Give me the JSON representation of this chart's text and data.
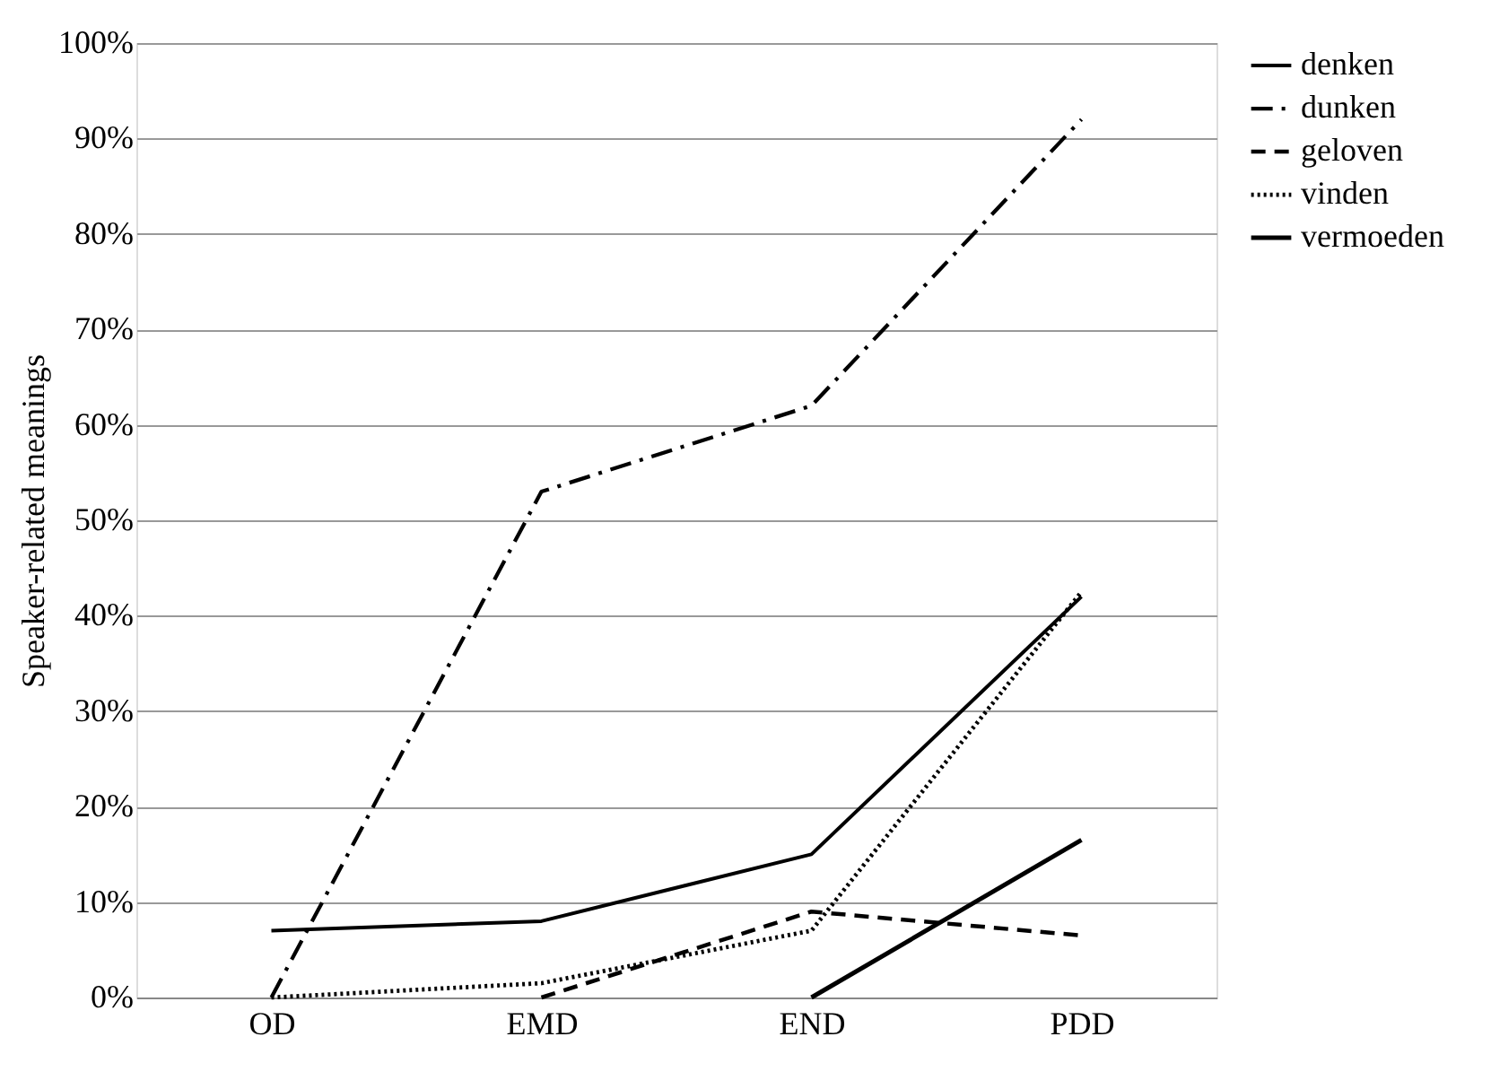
{
  "chart_data": {
    "type": "line",
    "ylabel": "Speaker-related meanings",
    "categories": [
      "OD",
      "EMD",
      "END",
      "PDD"
    ],
    "series": [
      {
        "name": "denken",
        "color": "#000000",
        "line_style": "solid",
        "values": [
          7,
          8,
          15,
          42
        ]
      },
      {
        "name": "dunken",
        "color": "#000000",
        "line_style": "dashdot",
        "values": [
          0,
          53,
          62,
          92
        ]
      },
      {
        "name": "geloven",
        "color": "#000000",
        "line_style": "dashed",
        "values": [
          null,
          0,
          9,
          6.5
        ]
      },
      {
        "name": "vinden",
        "color": "#000000",
        "line_style": "dotted",
        "values": [
          0,
          1.5,
          7,
          42.5
        ]
      },
      {
        "name": "vermoeden",
        "color": "#000000",
        "line_style": "solid",
        "values": [
          null,
          null,
          0,
          16.5
        ]
      }
    ],
    "ylim": [
      0,
      100
    ],
    "yticks": [
      {
        "value": 0,
        "label": "0%"
      },
      {
        "value": 10,
        "label": "10%"
      },
      {
        "value": 20,
        "label": "20%"
      },
      {
        "value": 30,
        "label": "30%"
      },
      {
        "value": 40,
        "label": "40%"
      },
      {
        "value": 50,
        "label": "50%"
      },
      {
        "value": 60,
        "label": "60%"
      },
      {
        "value": 70,
        "label": "70%"
      },
      {
        "value": 80,
        "label": "80%"
      },
      {
        "value": 90,
        "label": "90%"
      },
      {
        "value": 100,
        "label": "100%"
      }
    ],
    "grid": "y",
    "legend": "right",
    "marker": "none"
  }
}
